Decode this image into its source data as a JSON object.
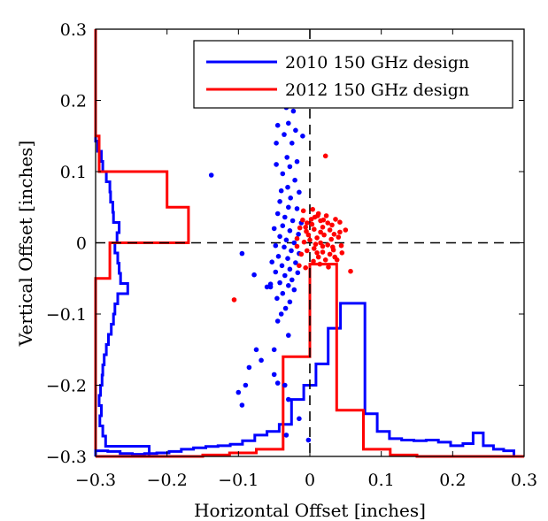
{
  "chart_data": {
    "type": "scatter",
    "xlabel": "Horizontal Offset [inches]",
    "ylabel": "Vertical Offset [inches]",
    "xlim": [
      -0.3,
      0.3
    ],
    "ylim": [
      -0.3,
      0.3
    ],
    "xticks": [
      "−0.3",
      "−0.2",
      "−0.1",
      "0",
      "0.1",
      "0.2",
      "0.3"
    ],
    "yticks": [
      "−0.3",
      "−0.2",
      "−0.1",
      "0",
      "0.1",
      "0.2",
      "0.3"
    ],
    "grid": false,
    "reference_lines": [
      "x = 0 dashed",
      "y = 0 dashed"
    ],
    "legend_position": "top-right",
    "series": [
      {
        "name": "2010 150 GHz design",
        "color": "#0000ff",
        "points": [
          [
            -0.033,
            0.19
          ],
          [
            -0.023,
            0.185
          ],
          [
            -0.03,
            0.168
          ],
          [
            -0.02,
            0.158
          ],
          [
            -0.036,
            0.152
          ],
          [
            -0.045,
            0.165
          ],
          [
            -0.047,
            0.14
          ],
          [
            -0.01,
            0.15
          ],
          [
            -0.025,
            0.14
          ],
          [
            -0.032,
            0.12
          ],
          [
            -0.018,
            0.114
          ],
          [
            -0.028,
            0.107
          ],
          [
            -0.047,
            0.11
          ],
          [
            -0.038,
            0.097
          ],
          [
            -0.021,
            0.088
          ],
          [
            -0.031,
            0.078
          ],
          [
            -0.04,
            0.073
          ],
          [
            -0.015,
            0.071
          ],
          [
            -0.027,
            0.063
          ],
          [
            -0.042,
            0.058
          ],
          [
            -0.03,
            0.05
          ],
          [
            -0.018,
            0.048
          ],
          [
            -0.045,
            0.041
          ],
          [
            -0.035,
            0.036
          ],
          [
            -0.024,
            0.031
          ],
          [
            -0.012,
            0.028
          ],
          [
            -0.038,
            0.024
          ],
          [
            -0.05,
            0.02
          ],
          [
            -0.028,
            0.017
          ],
          [
            -0.016,
            0.012
          ],
          [
            -0.042,
            0.009
          ],
          [
            -0.033,
            0.004
          ],
          [
            -0.022,
            0.0
          ],
          [
            -0.048,
            -0.004
          ],
          [
            -0.036,
            -0.006
          ],
          [
            -0.026,
            -0.011
          ],
          [
            -0.015,
            -0.015
          ],
          [
            -0.044,
            -0.019
          ],
          [
            -0.031,
            -0.022
          ],
          [
            -0.053,
            -0.027
          ],
          [
            -0.02,
            -0.028
          ],
          [
            -0.039,
            -0.032
          ],
          [
            -0.028,
            -0.037
          ],
          [
            -0.048,
            -0.041
          ],
          [
            -0.017,
            -0.042
          ],
          [
            -0.035,
            -0.046
          ],
          [
            -0.025,
            -0.052
          ],
          [
            -0.042,
            -0.056
          ],
          [
            -0.03,
            -0.06
          ],
          [
            -0.055,
            -0.062
          ],
          [
            -0.022,
            -0.066
          ],
          [
            -0.038,
            -0.071
          ],
          [
            -0.046,
            -0.078
          ],
          [
            -0.028,
            -0.083
          ],
          [
            -0.034,
            -0.092
          ],
          [
            -0.04,
            -0.1
          ],
          [
            -0.045,
            -0.11
          ],
          [
            -0.03,
            -0.13
          ],
          [
            -0.05,
            -0.15
          ],
          [
            -0.035,
            -0.2
          ],
          [
            -0.03,
            -0.22
          ],
          [
            -0.015,
            -0.247
          ],
          [
            -0.033,
            -0.27
          ],
          [
            -0.002,
            -0.277
          ],
          [
            -0.138,
            0.095
          ],
          [
            -0.095,
            -0.015
          ],
          [
            -0.078,
            -0.045
          ],
          [
            -0.06,
            -0.062
          ],
          [
            -0.055,
            -0.058
          ],
          [
            -0.075,
            -0.15
          ],
          [
            -0.068,
            -0.165
          ],
          [
            -0.085,
            -0.175
          ],
          [
            -0.09,
            -0.2
          ],
          [
            -0.1,
            -0.21
          ],
          [
            -0.095,
            -0.228
          ],
          [
            -0.045,
            -0.197
          ],
          [
            -0.05,
            -0.185
          ]
        ]
      },
      {
        "name": "2012 150 GHz design",
        "color": "#ff0000",
        "points": [
          [
            0.022,
            0.122
          ],
          [
            0.002,
            0.033
          ],
          [
            -0.004,
            0.028
          ],
          [
            0.007,
            0.036
          ],
          [
            0.012,
            0.041
          ],
          [
            -0.009,
            0.045
          ],
          [
            0.004,
            0.047
          ],
          [
            0.015,
            0.031
          ],
          [
            0.025,
            0.028
          ],
          [
            0.036,
            0.033
          ],
          [
            0.042,
            0.029
          ],
          [
            0.018,
            0.022
          ],
          [
            0.006,
            0.019
          ],
          [
            -0.005,
            0.016
          ],
          [
            -0.014,
            0.021
          ],
          [
            0.028,
            0.018
          ],
          [
            0.034,
            0.012
          ],
          [
            0.04,
            0.008
          ],
          [
            0.02,
            0.011
          ],
          [
            0.01,
            0.007
          ],
          [
            0.0,
            0.004
          ],
          [
            -0.008,
            0.001
          ],
          [
            -0.018,
            0.006
          ],
          [
            0.015,
            0.0
          ],
          [
            0.025,
            -0.003
          ],
          [
            0.032,
            -0.006
          ],
          [
            0.044,
            -0.004
          ],
          [
            0.006,
            -0.008
          ],
          [
            -0.004,
            -0.011
          ],
          [
            0.018,
            -0.013
          ],
          [
            0.028,
            -0.016
          ],
          [
            0.012,
            -0.02
          ],
          [
            -0.012,
            -0.016
          ],
          [
            0.022,
            -0.024
          ],
          [
            0.035,
            -0.02
          ],
          [
            0.005,
            -0.026
          ],
          [
            0.014,
            -0.03
          ],
          [
            0.026,
            -0.034
          ],
          [
            -0.015,
            -0.032
          ],
          [
            -0.006,
            -0.035
          ],
          [
            0.057,
            -0.04
          ],
          [
            0.05,
            0.018
          ],
          [
            0.011,
            0.038
          ],
          [
            -0.002,
            0.011
          ],
          [
            0.008,
            -0.002
          ],
          [
            0.038,
            -0.024
          ],
          [
            0.003,
            0.026
          ],
          [
            0.03,
            0.005
          ],
          [
            0.019,
            0.032
          ],
          [
            -0.01,
            0.032
          ],
          [
            0.015,
            0.015
          ],
          [
            0.042,
            0.015
          ],
          [
            0.023,
            0.038
          ],
          [
            0.018,
            -0.005
          ],
          [
            0.031,
            0.025
          ],
          [
            -0.018,
            -0.005
          ],
          [
            0.01,
            -0.014
          ],
          [
            0.033,
            -0.01
          ],
          [
            0.045,
            -0.014
          ],
          [
            -0.006,
            0.022
          ],
          [
            -0.106,
            -0.08
          ]
        ]
      }
    ],
    "histograms": [
      {
        "series": "2010 150 GHz design",
        "color": "#0000ff",
        "orientation": "horizontal",
        "bin_edges": [
          -0.3,
          -0.2857,
          -0.2714,
          -0.2571,
          -0.2429,
          -0.2286,
          -0.2143,
          -0.2,
          -0.1857,
          -0.1714,
          -0.1571,
          -0.1429,
          -0.1286,
          -0.1143,
          -0.1,
          -0.0857,
          -0.0714,
          -0.0571,
          -0.0429,
          -0.0286,
          -0.0143,
          0.0,
          0.0143,
          0.0286,
          0.0429,
          0.0571,
          0.0714,
          0.0857,
          0.1,
          0.1143,
          0.1286,
          0.1429,
          0.1571,
          0.1714,
          0.1857,
          0.2
        ],
        "edge_values": [
          -0.225,
          -0.286,
          -0.29,
          -0.294,
          -0.292,
          -0.295,
          -0.293,
          -0.291,
          -0.29,
          -0.288,
          -0.285,
          -0.282,
          -0.278,
          -0.275,
          -0.273,
          -0.269,
          -0.255,
          -0.265,
          -0.267,
          -0.269,
          -0.273,
          -0.27,
          -0.267,
          -0.275,
          -0.276,
          -0.279,
          -0.28,
          -0.285,
          -0.29,
          -0.292,
          -0.297,
          -0.3,
          -0.3,
          -0.3,
          -0.3
        ]
      },
      {
        "series": "2012 150 GHz design",
        "color": "#ff0000",
        "orientation": "horizontal",
        "bin_edges": [
          -0.3,
          -0.25,
          -0.2,
          -0.15,
          -0.1,
          -0.05,
          0.0,
          0.05,
          0.1,
          0.15,
          0.2,
          0.25,
          0.3
        ],
        "edge_values": [
          -0.3,
          -0.3,
          -0.3,
          -0.3,
          -0.3,
          -0.28,
          -0.17,
          -0.2,
          -0.295,
          -0.3,
          -0.3,
          -0.3
        ]
      },
      {
        "series": "2010 150 GHz design",
        "color": "#0000ff",
        "orientation": "vertical",
        "bin_edges": [
          -0.3,
          -0.2829,
          -0.2657,
          -0.2486,
          -0.2314,
          -0.2143,
          -0.1971,
          -0.18,
          -0.1629,
          -0.1457,
          -0.1286,
          -0.1114,
          -0.0943,
          -0.0771,
          -0.06,
          -0.0429,
          -0.0257,
          -0.0086,
          0.0086,
          0.0257,
          0.0429,
          0.06,
          0.0771,
          0.0943,
          0.1114,
          0.1286,
          0.1457,
          0.1629,
          0.18,
          0.1971,
          0.2143,
          0.2286,
          0.2429,
          0.2571,
          0.2714,
          0.2857
        ],
        "edge_values": [
          -0.292,
          -0.293,
          -0.296,
          -0.297,
          -0.296,
          -0.295,
          -0.293,
          -0.29,
          -0.288,
          -0.286,
          -0.285,
          -0.283,
          -0.278,
          -0.27,
          -0.265,
          -0.255,
          -0.22,
          -0.2,
          -0.17,
          -0.12,
          -0.085,
          -0.085,
          -0.24,
          -0.265,
          -0.275,
          -0.277,
          -0.278,
          -0.277,
          -0.28,
          -0.285,
          -0.282,
          -0.267,
          -0.285,
          -0.29,
          -0.292
        ]
      },
      {
        "series": "2012 150 GHz design",
        "color": "#ff0000",
        "orientation": "vertical",
        "bin_edges": [
          -0.3,
          -0.2625,
          -0.225,
          -0.1875,
          -0.15,
          -0.1125,
          -0.075,
          -0.0375,
          0.0,
          0.0375,
          0.075,
          0.1125,
          0.15,
          0.1875,
          0.225,
          0.2625,
          0.3
        ],
        "edge_values": [
          -0.3,
          -0.3,
          -0.3,
          -0.3,
          -0.298,
          -0.295,
          -0.29,
          -0.16,
          -0.03,
          -0.235,
          -0.29,
          -0.298,
          -0.3,
          -0.3,
          -0.3,
          -0.3
        ]
      }
    ]
  }
}
